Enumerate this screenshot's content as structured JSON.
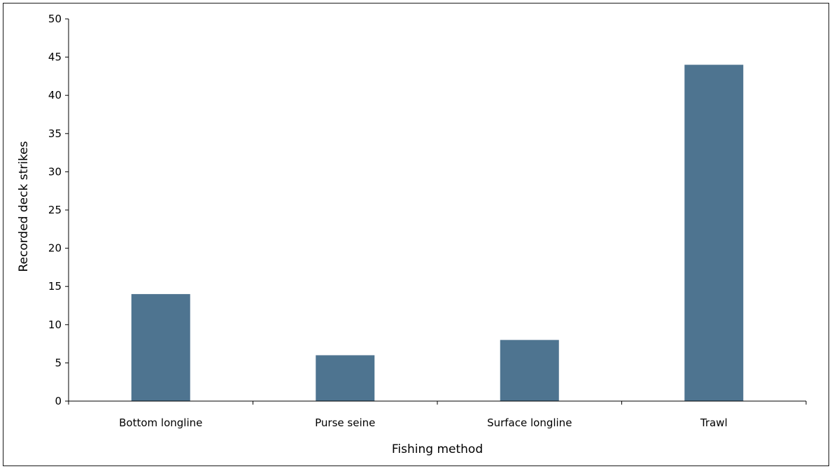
{
  "chart_data": {
    "type": "bar",
    "categories": [
      "Bottom longline",
      "Purse seine",
      "Surface longline",
      "Trawl"
    ],
    "values": [
      14,
      6,
      8,
      44
    ],
    "xlabel": "Fishing method",
    "ylabel": "Recorded deck strikes",
    "ylim": [
      0,
      50
    ],
    "yticks": [
      0,
      5,
      10,
      15,
      20,
      25,
      30,
      35,
      40,
      45,
      50
    ],
    "bar_color": "#4e7490",
    "grid": false,
    "legend": "none"
  }
}
